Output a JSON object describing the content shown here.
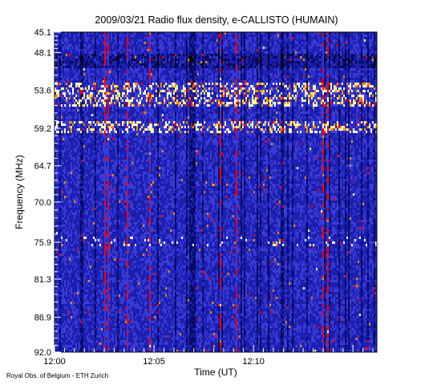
{
  "chart_data": {
    "type": "heatmap",
    "title": "2009/03/21  Radio flux density, e-CALLISTO (HUMAIN)",
    "xlabel": "Time (UT)",
    "ylabel": "Frequency (MHz)",
    "x_ticks": [
      "12:00",
      "12:05",
      "12:10"
    ],
    "x_tick_minutes": [
      0,
      5,
      10
    ],
    "xlim_minutes": [
      0,
      16.2
    ],
    "y_ticks": [
      "45.1",
      "48.1",
      "53.6",
      "59.2",
      "64.7",
      "70.0",
      "75.9",
      "81.3",
      "86.9",
      "92.0"
    ],
    "y_tick_values": [
      45.1,
      48.1,
      53.6,
      59.2,
      64.7,
      70.0,
      75.9,
      81.3,
      86.9,
      92.0
    ],
    "ylim": [
      45.1,
      92.0
    ],
    "y_inverted": true,
    "colormap": [
      "#000000",
      "#0a0a60",
      "#1a1fb0",
      "#3a3ad6",
      "#ff0000",
      "#ff8c00",
      "#ffff80",
      "#ffffff"
    ],
    "features": [
      {
        "kind": "band",
        "freq_mhz": [
          48.1,
          50.5
        ],
        "time_min": [
          0,
          16.2
        ],
        "level": "dark"
      },
      {
        "kind": "band",
        "freq_mhz": [
          52.5,
          56.0
        ],
        "time_min": [
          0,
          16.2
        ],
        "level": "hot"
      },
      {
        "kind": "band",
        "freq_mhz": [
          58.2,
          59.8
        ],
        "time_min": [
          0,
          16.2
        ],
        "level": "hot"
      },
      {
        "kind": "spikes",
        "freq_mhz": [
          75.2,
          76.5
        ],
        "time_min": [
          0,
          16.2
        ],
        "level": "white"
      },
      {
        "kind": "blob",
        "freq_mhz": [
          75.4,
          76.4
        ],
        "time_min": [
          11.1,
          11.5
        ],
        "level": "hot"
      }
    ]
  },
  "footer": "Royal Obs. of Belgium - ETH Zurich"
}
